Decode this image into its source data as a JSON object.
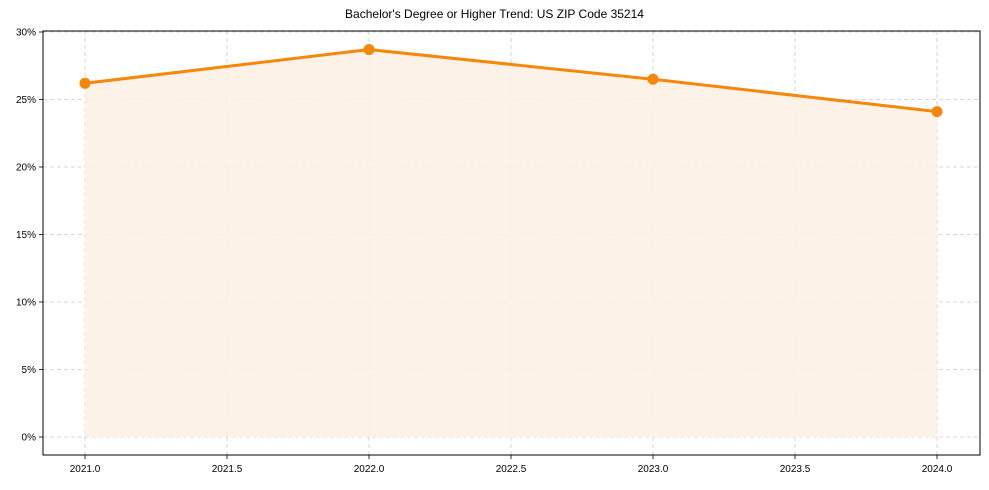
{
  "chart_data": {
    "type": "line",
    "title": "Bachelor's Degree or Higher Trend: US ZIP Code 35214",
    "xlabel": "",
    "ylabel": "",
    "x": [
      2021,
      2022,
      2023,
      2024
    ],
    "series": [
      {
        "name": "Bachelor's Degree or Higher",
        "values": [
          26.2,
          28.7,
          26.5,
          24.1
        ],
        "color": "#f5870a",
        "fill": true,
        "fill_color": "#fdf1e4",
        "marker": "circle"
      }
    ],
    "xlim": [
      2020.85,
      2024.15
    ],
    "ylim": [
      -1.4,
      30
    ],
    "x_ticks": [
      "2021.0",
      "2021.5",
      "2022.0",
      "2022.5",
      "2023.0",
      "2023.5",
      "2024.0"
    ],
    "y_ticks": [
      "0%",
      "5%",
      "10%",
      "15%",
      "20%",
      "25%",
      "30%"
    ],
    "grid": true,
    "legend": null
  }
}
